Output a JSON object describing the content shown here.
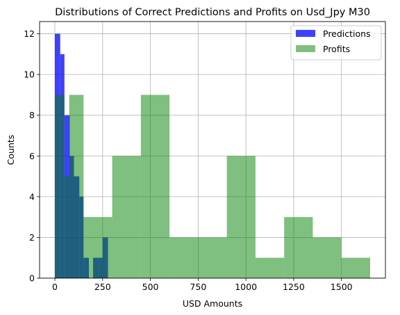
{
  "chart_data": {
    "type": "histogram",
    "title": "Distributions of Correct Predictions and Profits on Usd_Jpy M30",
    "xlabel": "USD Amounts",
    "ylabel": "Counts",
    "xlim": [
      -80,
      1730
    ],
    "ylim": [
      0,
      12.6
    ],
    "xticks": [
      0,
      250,
      500,
      750,
      1000,
      1250,
      1500
    ],
    "yticks": [
      0,
      2,
      4,
      6,
      8,
      10,
      12
    ],
    "grid": true,
    "legend_position": "top-right",
    "series": [
      {
        "name": "Predictions",
        "color": "#0000ff",
        "alpha": 0.75,
        "bins": [
          {
            "x0": 0,
            "x1": 28,
            "count": 12
          },
          {
            "x0": 28,
            "x1": 50,
            "count": 11
          },
          {
            "x0": 50,
            "x1": 78,
            "count": 8
          },
          {
            "x0": 78,
            "x1": 100,
            "count": 6
          },
          {
            "x0": 100,
            "x1": 128,
            "count": 5
          },
          {
            "x0": 128,
            "x1": 150,
            "count": 4
          },
          {
            "x0": 150,
            "x1": 178,
            "count": 1
          },
          {
            "x0": 178,
            "x1": 200,
            "count": 0
          },
          {
            "x0": 200,
            "x1": 228,
            "count": 1
          },
          {
            "x0": 228,
            "x1": 250,
            "count": 1
          },
          {
            "x0": 250,
            "x1": 278,
            "count": 2
          }
        ]
      },
      {
        "name": "Profits",
        "color": "#008000",
        "alpha": 0.5,
        "bins": [
          {
            "x0": 0,
            "x1": 50,
            "count": 9
          },
          {
            "x0": 50,
            "x1": 75,
            "count": 5
          },
          {
            "x0": 75,
            "x1": 100,
            "count": 9
          },
          {
            "x0": 100,
            "x1": 150,
            "count": 9
          },
          {
            "x0": 150,
            "x1": 300,
            "count": 3
          },
          {
            "x0": 300,
            "x1": 450,
            "count": 6
          },
          {
            "x0": 450,
            "x1": 600,
            "count": 9
          },
          {
            "x0": 600,
            "x1": 900,
            "count": 2
          },
          {
            "x0": 900,
            "x1": 1050,
            "count": 6
          },
          {
            "x0": 1050,
            "x1": 1200,
            "count": 1
          },
          {
            "x0": 1200,
            "x1": 1350,
            "count": 3
          },
          {
            "x0": 1350,
            "x1": 1500,
            "count": 2
          },
          {
            "x0": 1500,
            "x1": 1650,
            "count": 1
          }
        ]
      }
    ]
  }
}
